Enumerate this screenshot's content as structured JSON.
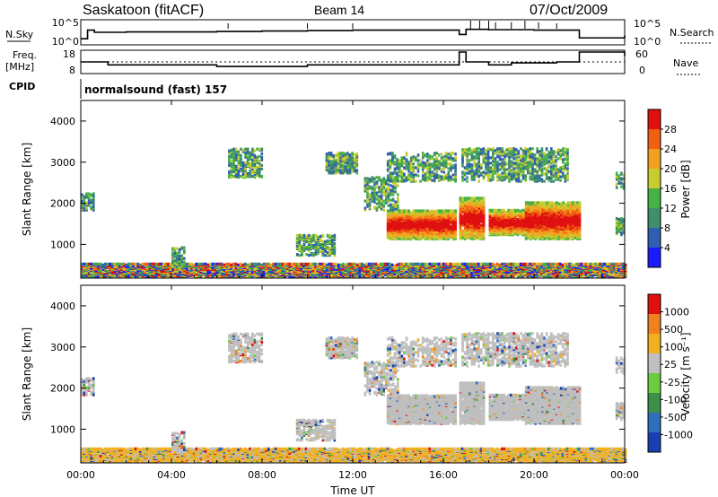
{
  "header": {
    "station": "Saskatoon (fitACF)",
    "beam": "Beam 14",
    "date": "07/Oct/2009"
  },
  "noise_panel": {
    "left_label": "N.Sky",
    "left_ticks": [
      "10^5",
      "10^0"
    ],
    "right_label": "N.Search",
    "right_ticks": [
      "10^5",
      "10^0"
    ]
  },
  "freq_panel": {
    "left_label_1": "Freq.",
    "left_label_2": "[MHz]",
    "left_ticks": [
      "18",
      "8"
    ],
    "right_label": "Nave",
    "right_ticks": [
      "60",
      "0"
    ]
  },
  "cpid": {
    "label": "CPID",
    "program": "normalsound (fast) 157"
  },
  "power_panel": {
    "ylabel": "Slant Range [km]",
    "yticks": [
      "4000",
      "3000",
      "2000",
      "1000"
    ],
    "colorbar_label": "Power [dB]",
    "colorbar_ticks": [
      "28",
      "24",
      "20",
      "16",
      "12",
      "8",
      "4"
    ]
  },
  "velocity_panel": {
    "ylabel": "Slant Range [km]",
    "yticks": [
      "4000",
      "3000",
      "2000",
      "1000"
    ],
    "colorbar_label": "Velocity [m s⁻¹]",
    "colorbar_ticks": [
      "1000",
      "500",
      "100",
      "25",
      "-25",
      "-100",
      "-500",
      "-1000"
    ]
  },
  "xaxis": {
    "label": "Time UT",
    "ticks": [
      "00:00",
      "04:00",
      "08:00",
      "12:00",
      "16:00",
      "20:00",
      "00:00"
    ]
  },
  "colors": {
    "power_scale": [
      "#1a1aff",
      "#2f5fb0",
      "#3f8f6a",
      "#44b244",
      "#c8cc30",
      "#f2a020",
      "#f06010",
      "#e01010"
    ],
    "velocity_scale": [
      "#1a3fb0",
      "#2f6fc0",
      "#3f8f4a",
      "#6acc40",
      "#bfbfbf",
      "#f0b020",
      "#f08020",
      "#e01010"
    ],
    "ground_scatter": "#bfbfbf"
  },
  "chart_data": [
    {
      "type": "line",
      "title": "",
      "xlabel": "",
      "ylabel": "N.Sky",
      "series": [
        {
          "name": "N.Sky",
          "x_hours": [
            0,
            0.3,
            0.6,
            1.0,
            2.0,
            4.0,
            6.0,
            8.0,
            10.0,
            12.0,
            14.0,
            16.0,
            16.7,
            17.0,
            18.0,
            20.0,
            21.0,
            22.0,
            23.5,
            24.0
          ],
          "values": [
            1,
            3,
            2.5,
            2.5,
            2.6,
            2.6,
            2.7,
            2.8,
            2.9,
            3.0,
            3.0,
            3.0,
            2.0,
            3.2,
            3.1,
            3.0,
            3.0,
            1.2,
            1.2,
            1.8
          ]
        }
      ]
    },
    {
      "type": "line",
      "title": "",
      "xlabel": "",
      "ylabel": "Freq. [MHz]",
      "ylim": [
        8,
        18
      ],
      "series": [
        {
          "name": "Freq.",
          "x_hours": [
            0,
            1.0,
            1.2,
            2.0,
            4.0,
            6.0,
            8.0,
            10.0,
            12.0,
            14.0,
            16.0,
            16.7,
            17.0,
            18.0,
            19.0,
            20.0,
            21.0,
            22.0,
            24.0
          ],
          "values": [
            13,
            13,
            11.5,
            11.5,
            11.5,
            10.7,
            10.7,
            11.5,
            11.5,
            11.5,
            11.5,
            18,
            13,
            11.5,
            12.5,
            12.5,
            13,
            18,
            16
          ]
        }
      ]
    },
    {
      "type": "heatmap",
      "title": "",
      "xlabel": "",
      "ylabel": "Slant Range [km]",
      "xlim": [
        0,
        24
      ],
      "ylim": [
        180,
        4500
      ],
      "colorbar": {
        "label": "Power [dB]",
        "ticks": [
          28,
          24,
          20,
          16,
          12,
          8,
          4
        ]
      }
    },
    {
      "type": "heatmap",
      "title": "",
      "xlabel": "Time UT",
      "ylabel": "Slant Range [km]",
      "xlim": [
        0,
        24
      ],
      "ylim": [
        180,
        4500
      ],
      "colorbar": {
        "label": "Velocity [m s⁻¹]",
        "ticks": [
          1000,
          500,
          100,
          25,
          -25,
          -100,
          -500,
          -1000
        ]
      }
    }
  ]
}
